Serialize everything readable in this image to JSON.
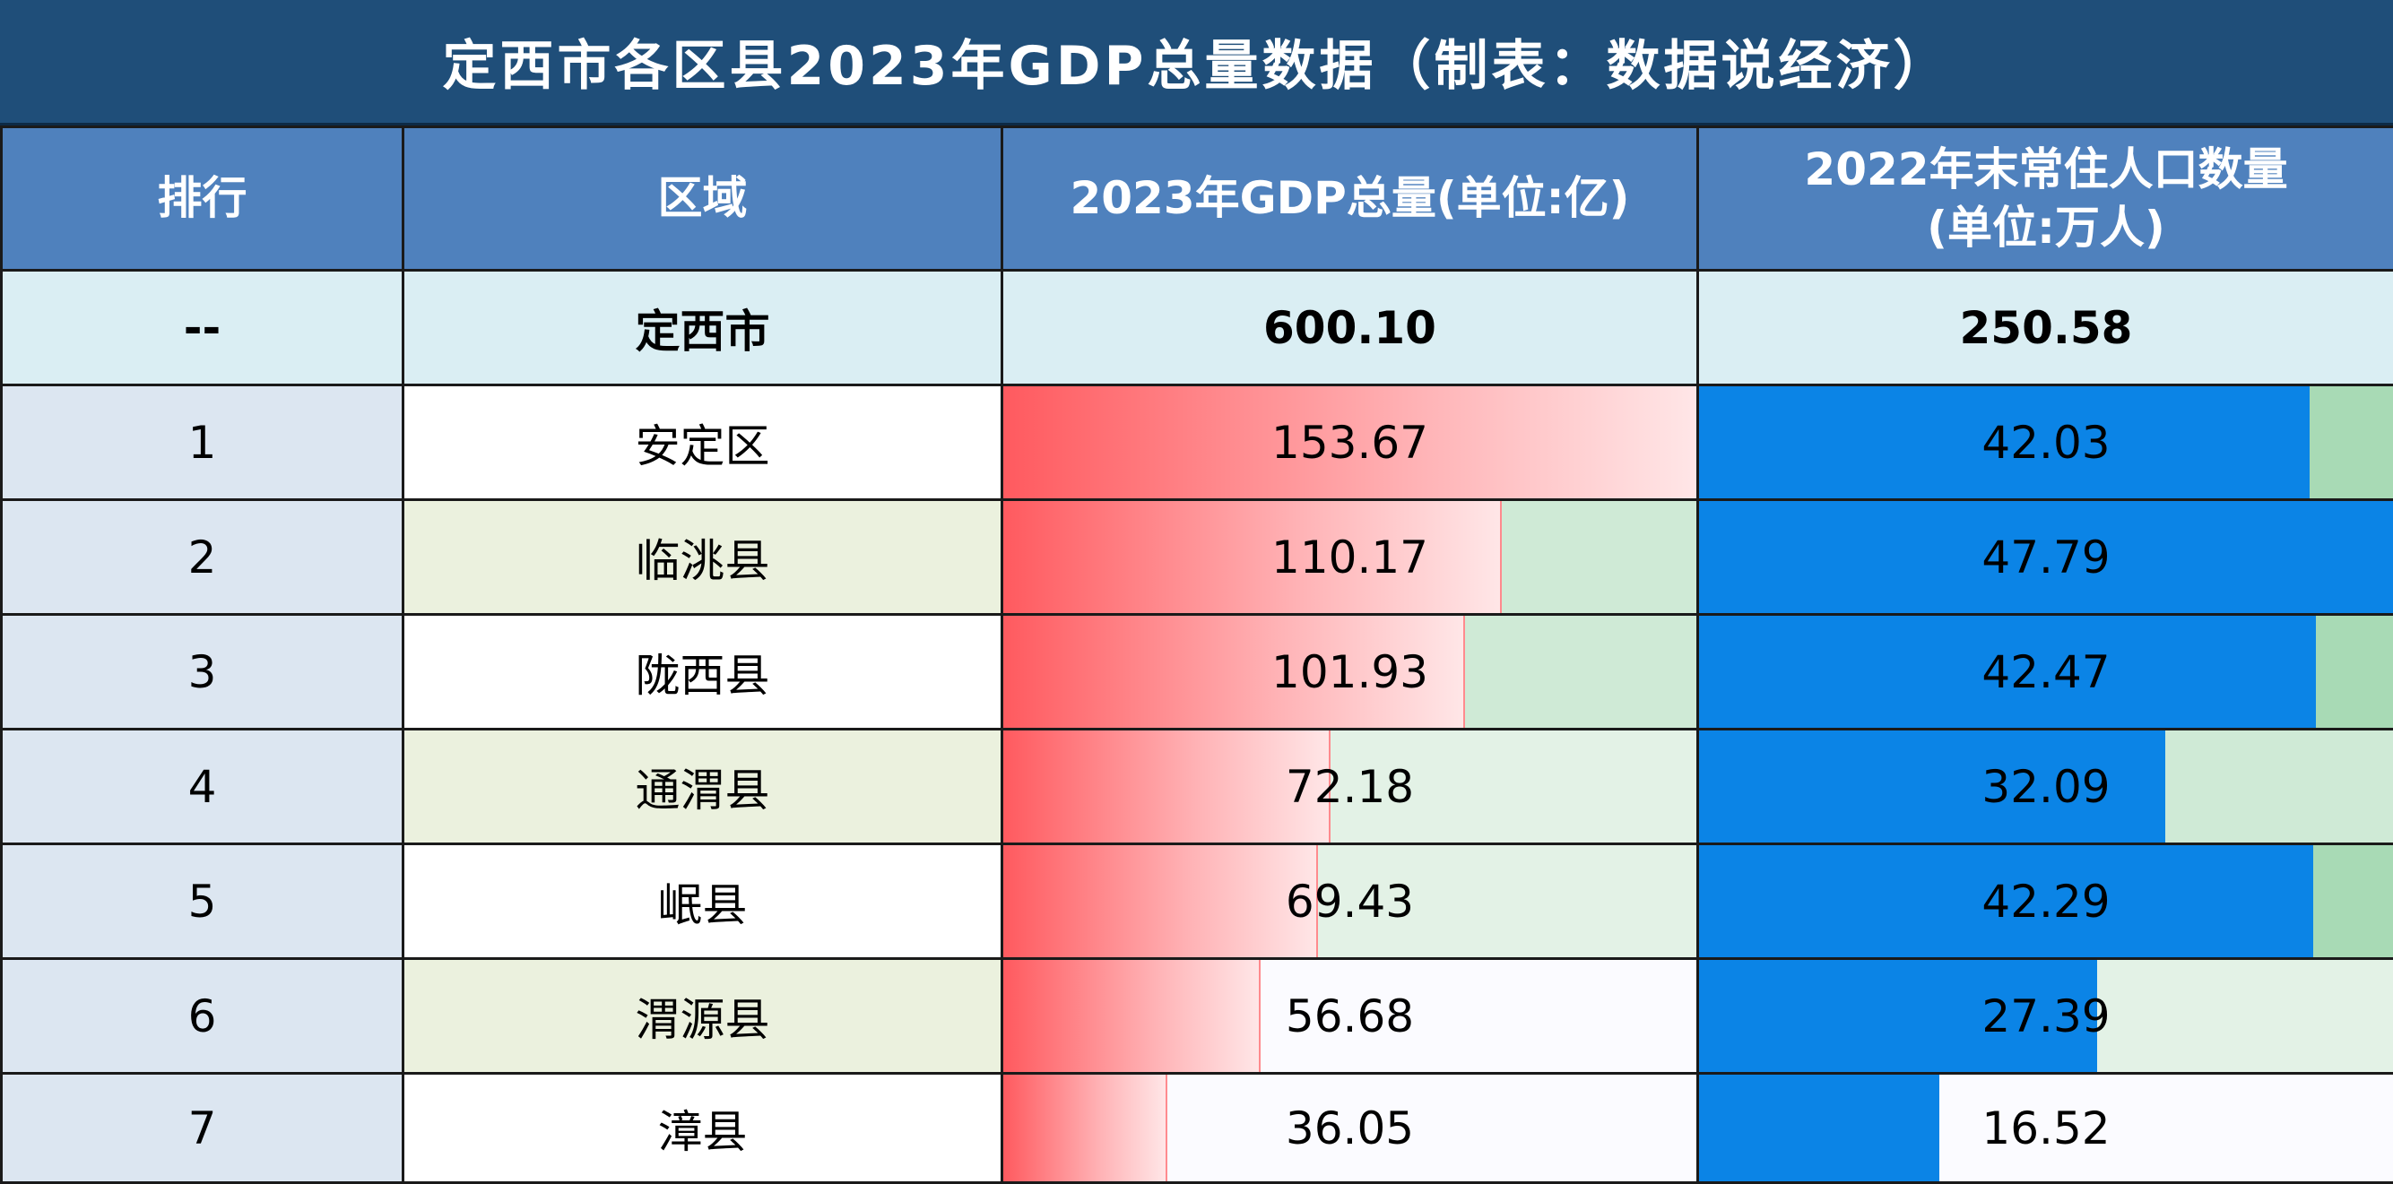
{
  "title": "定西市各区县2023年GDP总量数据（制表：数据说经济）",
  "columns": {
    "rank": "排行",
    "region": "区域",
    "gdp": "2023年GDP总量(单位:亿)",
    "pop_line1": "2022年末常住人口数量",
    "pop_line2": "(单位:万人)"
  },
  "total": {
    "rank": "--",
    "region": "定西市",
    "gdp": "600.10",
    "pop": "250.58"
  },
  "rows": [
    {
      "rank": "1",
      "region": "安定区",
      "gdp": "153.67",
      "pop": "42.03"
    },
    {
      "rank": "2",
      "region": "临洮县",
      "gdp": "110.17",
      "pop": "47.79"
    },
    {
      "rank": "3",
      "region": "陇西县",
      "gdp": "101.93",
      "pop": "42.47"
    },
    {
      "rank": "4",
      "region": "通渭县",
      "gdp": "72.18",
      "pop": "32.09"
    },
    {
      "rank": "5",
      "region": "岷县",
      "gdp": "69.43",
      "pop": "42.29"
    },
    {
      "rank": "6",
      "region": "渭源县",
      "gdp": "56.68",
      "pop": "27.39"
    },
    {
      "rank": "7",
      "region": "漳县",
      "gdp": "36.05",
      "pop": "16.52"
    }
  ],
  "colors": {
    "gdp_bar": "#ff5a5f",
    "pop_bar": "#0b84e6",
    "background_bands": [
      "#7fc794",
      "#a8dab5",
      "#cfead6",
      "#e3f2e6",
      "#fbfbff"
    ]
  },
  "chart_data": {
    "type": "table",
    "categories": [
      "安定区",
      "临洮县",
      "陇西县",
      "通渭县",
      "岷县",
      "渭源县",
      "漳县"
    ],
    "series": [
      {
        "name": "2023年GDP总量(单位:亿)",
        "values": [
          153.67,
          110.17,
          101.93,
          72.18,
          69.43,
          56.68,
          36.05
        ]
      },
      {
        "name": "2022年末常住人口数量(单位:万人)",
        "values": [
          42.03,
          47.79,
          42.47,
          32.09,
          42.29,
          27.39,
          16.52
        ]
      }
    ],
    "totals": {
      "region": "定西市",
      "gdp": 600.1,
      "pop": 250.58
    }
  }
}
